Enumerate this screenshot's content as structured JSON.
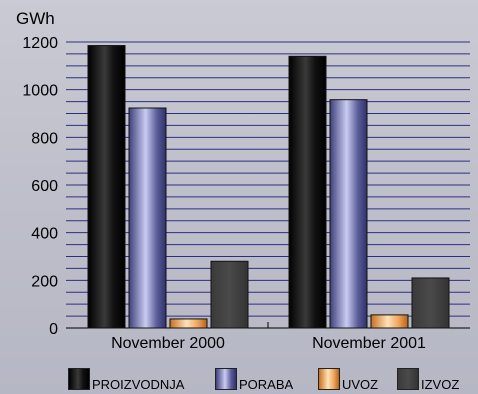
{
  "chart_data": {
    "type": "bar",
    "title": "",
    "ylabel": "GWh",
    "xlabel": "",
    "ylim": [
      0,
      1200
    ],
    "yticks": [
      0,
      200,
      400,
      600,
      800,
      1000,
      1200
    ],
    "categories": [
      "November 2000",
      "November 2001"
    ],
    "series": [
      {
        "name": "PROIZVODNJA",
        "values": [
          1185,
          1140
        ],
        "color": "#111111"
      },
      {
        "name": "PORABA",
        "values": [
          923,
          958
        ],
        "color": "#5d5f9a"
      },
      {
        "name": "UVOZ",
        "values": [
          38,
          55
        ],
        "color": "#f0a45a"
      },
      {
        "name": "IZVOZ",
        "values": [
          280,
          210
        ],
        "color": "#444444"
      }
    ],
    "grid": true,
    "legend_position": "bottom"
  }
}
